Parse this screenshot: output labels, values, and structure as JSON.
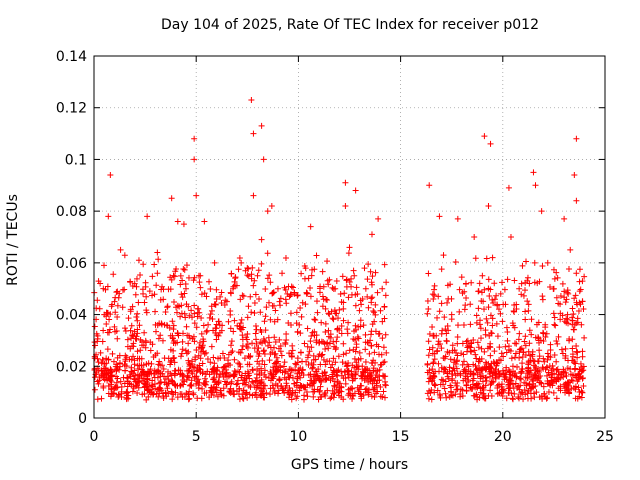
{
  "chart_data": {
    "type": "scatter",
    "title": "Day 104 of 2025, Rate Of TEC Index for receiver p012",
    "xlabel": "GPS time / hours",
    "ylabel": "ROTI / TECUs",
    "xlim": [
      0,
      25
    ],
    "ylim": [
      0,
      0.14
    ],
    "xticks": [
      "0",
      "5",
      "10",
      "15",
      "20",
      "25"
    ],
    "yticks": [
      "0",
      "0.02",
      "0.04",
      "0.06",
      "0.08",
      "0.1",
      "0.12",
      "0.14"
    ],
    "grid": true,
    "marker": "+",
    "color": "#ff0000",
    "data_gap_hours": [
      14.3,
      16.3
    ],
    "series": [
      {
        "points": [
          [
            0.3,
            0.052
          ],
          [
            0.8,
            0.094
          ],
          [
            0.7,
            0.078
          ],
          [
            1.3,
            0.065
          ],
          [
            2.2,
            0.061
          ],
          [
            2.6,
            0.078
          ],
          [
            3.1,
            0.064
          ],
          [
            3.1,
            0.056
          ],
          [
            3.8,
            0.085
          ],
          [
            4.1,
            0.076
          ],
          [
            4.4,
            0.075
          ],
          [
            4.9,
            0.108
          ],
          [
            4.9,
            0.1
          ],
          [
            5.0,
            0.086
          ],
          [
            5.4,
            0.076
          ],
          [
            5.9,
            0.06
          ],
          [
            6.5,
            0.045
          ],
          [
            7.2,
            0.06
          ],
          [
            7.7,
            0.123
          ],
          [
            7.8,
            0.11
          ],
          [
            7.8,
            0.086
          ],
          [
            8.2,
            0.113
          ],
          [
            8.3,
            0.1
          ],
          [
            8.5,
            0.08
          ],
          [
            8.7,
            0.082
          ],
          [
            8.2,
            0.069
          ],
          [
            9.2,
            0.056
          ],
          [
            10.6,
            0.074
          ],
          [
            12.3,
            0.091
          ],
          [
            12.3,
            0.082
          ],
          [
            12.8,
            0.088
          ],
          [
            12.5,
            0.066
          ],
          [
            13.6,
            0.071
          ],
          [
            13.9,
            0.077
          ],
          [
            14.1,
            0.05
          ],
          [
            16.4,
            0.09
          ],
          [
            16.9,
            0.078
          ],
          [
            17.1,
            0.063
          ],
          [
            17.8,
            0.077
          ],
          [
            18.6,
            0.07
          ],
          [
            19.1,
            0.109
          ],
          [
            19.4,
            0.106
          ],
          [
            19.3,
            0.082
          ],
          [
            19.5,
            0.062
          ],
          [
            20.3,
            0.089
          ],
          [
            20.4,
            0.07
          ],
          [
            21.5,
            0.095
          ],
          [
            21.6,
            0.09
          ],
          [
            21.9,
            0.08
          ],
          [
            22.2,
            0.06
          ],
          [
            23.0,
            0.077
          ],
          [
            23.6,
            0.108
          ],
          [
            23.5,
            0.094
          ],
          [
            23.6,
            0.084
          ],
          [
            23.3,
            0.065
          ],
          [
            0.5,
            0.04
          ],
          [
            1.0,
            0.045
          ],
          [
            1.8,
            0.042
          ],
          [
            2.4,
            0.048
          ],
          [
            3.5,
            0.041
          ],
          [
            4.5,
            0.05
          ],
          [
            5.2,
            0.055
          ],
          [
            6.0,
            0.046
          ],
          [
            6.8,
            0.05
          ],
          [
            7.5,
            0.058
          ],
          [
            8.0,
            0.055
          ],
          [
            9.0,
            0.05
          ],
          [
            9.8,
            0.048
          ],
          [
            10.5,
            0.054
          ],
          [
            11.2,
            0.047
          ],
          [
            11.8,
            0.05
          ],
          [
            12.7,
            0.057
          ],
          [
            13.3,
            0.05
          ],
          [
            16.6,
            0.046
          ],
          [
            17.5,
            0.04
          ],
          [
            18.2,
            0.052
          ],
          [
            19.0,
            0.055
          ],
          [
            19.9,
            0.048
          ],
          [
            20.8,
            0.05
          ],
          [
            21.3,
            0.052
          ],
          [
            22.5,
            0.05
          ],
          [
            23.2,
            0.048
          ],
          [
            23.8,
            0.044
          ]
        ]
      }
    ]
  }
}
